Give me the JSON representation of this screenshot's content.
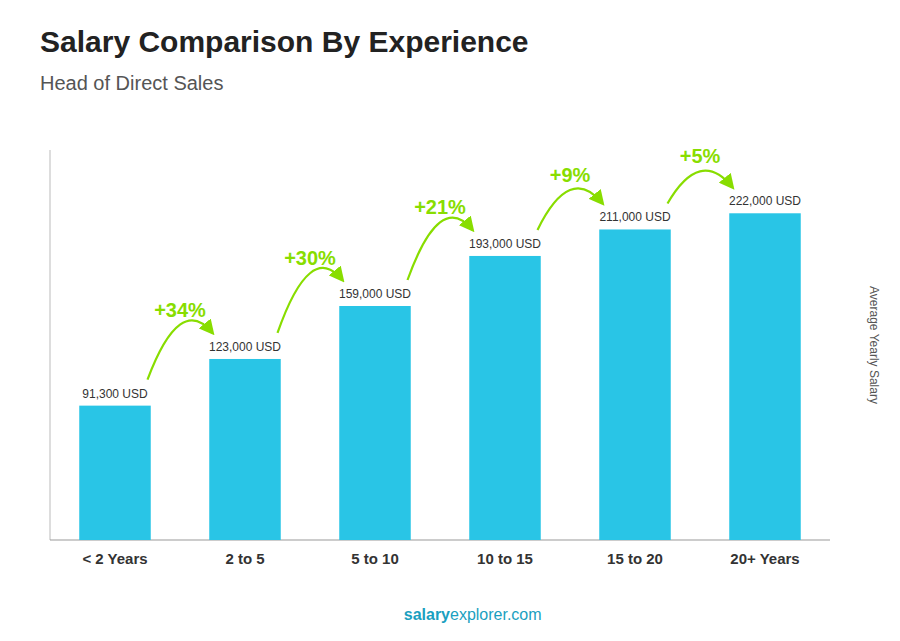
{
  "chart_data": {
    "type": "bar",
    "title": "Salary Comparison By Experience",
    "subtitle": "Head of Direct Sales",
    "y_label": "Average Yearly Salary",
    "categories": [
      "< 2 Years",
      "2 to 5",
      "5 to 10",
      "10 to 15",
      "15 to 20",
      "20+ Years"
    ],
    "values": [
      91300,
      123000,
      159000,
      193000,
      211000,
      222000
    ],
    "value_labels": [
      "91,300 USD",
      "123,000 USD",
      "159,000 USD",
      "193,000 USD",
      "211,000 USD",
      "222,000 USD"
    ],
    "data_labels": true,
    "color": "#29C5E6",
    "ylim": [
      0,
      265000
    ],
    "grid": false,
    "tick_labels": "x",
    "annotations": [
      {
        "text": "+34%",
        "color": "#88DD00"
      },
      {
        "text": "+30%",
        "color": "#88DD00"
      },
      {
        "text": "+21%",
        "color": "#88DD00"
      },
      {
        "text": "+9%",
        "color": "#88DD00"
      },
      {
        "text": "+5%",
        "color": "#88DD00"
      }
    ],
    "footer": {
      "bold": "salary",
      "normal": "explorer.com"
    }
  }
}
